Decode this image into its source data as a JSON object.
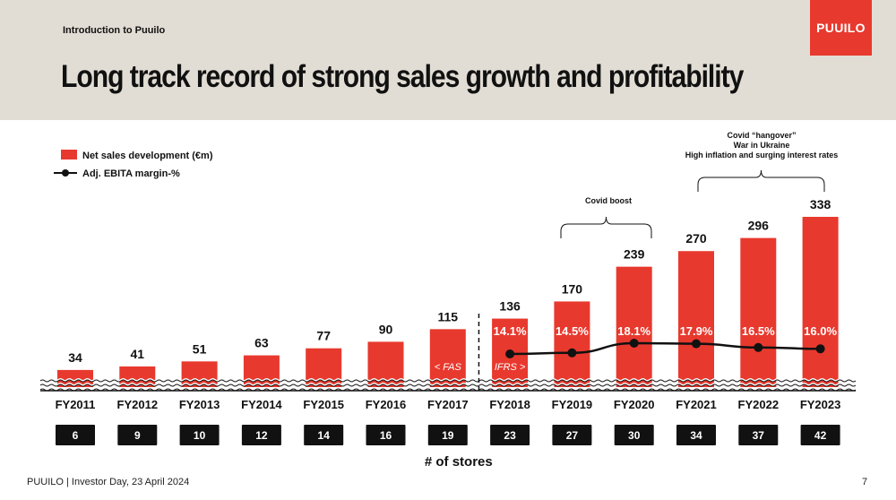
{
  "header": {
    "section": "Introduction to Puuilo",
    "title": "Long track record of strong sales growth and profitability",
    "logo": "PUUILO"
  },
  "footer": {
    "text": "PUUILO | Investor Day, 23 April 2024",
    "page": "7"
  },
  "annotations": {
    "covid_boost": "Covid boost",
    "hangover_1": "Covid “hangover”",
    "hangover_2": "War in Ukraine",
    "hangover_3": "High inflation and surging interest rates",
    "fas": "< FAS",
    "ifrs": "IFRS >"
  },
  "colors": {
    "bar": "#e8392e",
    "line": "#111111",
    "store_box": "#111111",
    "header_bg": "#e2ddd4"
  },
  "chart_data": {
    "type": "bar",
    "categories": [
      "FY2011",
      "FY2012",
      "FY2013",
      "FY2014",
      "FY2015",
      "FY2016",
      "FY2017",
      "FY2018",
      "FY2019",
      "FY2020",
      "FY2021",
      "FY2022",
      "FY2023"
    ],
    "series": [
      {
        "name": "Net sales development (€m)",
        "type": "bar",
        "values": [
          34,
          41,
          51,
          63,
          77,
          90,
          115,
          136,
          170,
          239,
          270,
          296,
          338
        ]
      },
      {
        "name": "Adj. EBITA margin-%",
        "type": "line",
        "values": [
          null,
          null,
          null,
          null,
          null,
          null,
          null,
          14.1,
          14.5,
          18.1,
          17.9,
          16.5,
          16.0
        ],
        "labels": [
          "",
          "",
          "",
          "",
          "",
          "",
          "",
          "14.1%",
          "14.5%",
          "18.1%",
          "17.9%",
          "16.5%",
          "16.0%"
        ]
      }
    ],
    "stores": {
      "label": "# of stores",
      "values": [
        6,
        9,
        10,
        12,
        14,
        16,
        19,
        23,
        27,
        30,
        34,
        37,
        42
      ]
    },
    "legend": [
      "Net sales development (€m)",
      "Adj. EBITA margin-%"
    ],
    "legend_position": "top-left"
  }
}
